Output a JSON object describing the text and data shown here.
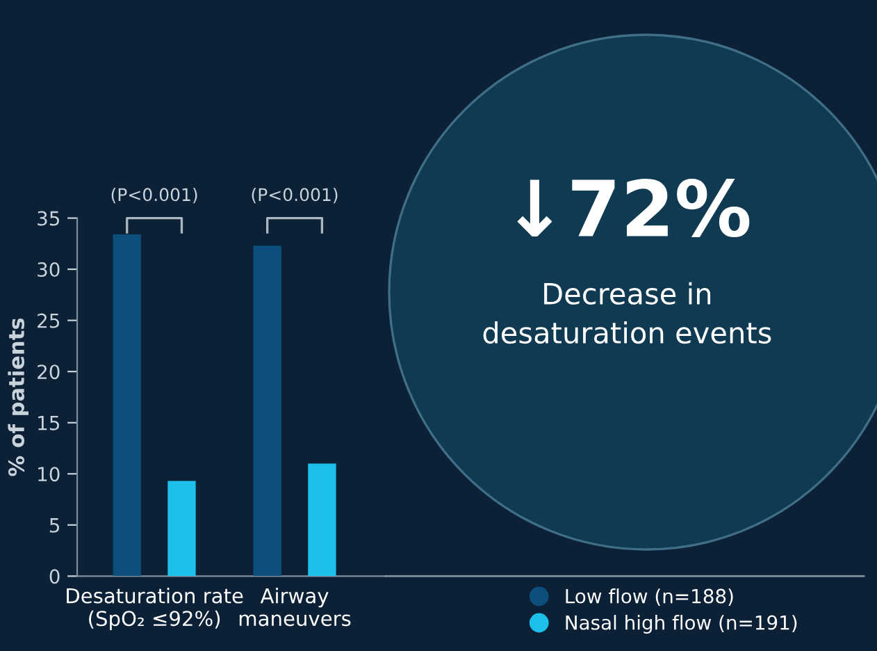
{
  "chart_data": {
    "type": "bar",
    "ylabel": "% of patients",
    "categories": [
      "Desaturation rate\n(SpO₂ ≤92%)",
      "Airway\nmaneuvers"
    ],
    "series": [
      {
        "name": "Low flow (n=188)",
        "color": "#0d4f7c",
        "values": [
          33.4,
          32.3
        ]
      },
      {
        "name": "Nasal high flow (n=191)",
        "color": "#1cc0ea",
        "values": [
          9.3,
          11.0
        ]
      }
    ],
    "ylim": [
      0,
      35
    ],
    "yticks": [
      0,
      5,
      10,
      15,
      20,
      25,
      30,
      35
    ],
    "grid": false,
    "legend": "bottom right",
    "annotations": [
      "(P<0.001)",
      "(P<0.001)",
      "↓72%",
      "Decrease in\ndesaturation events"
    ]
  }
}
